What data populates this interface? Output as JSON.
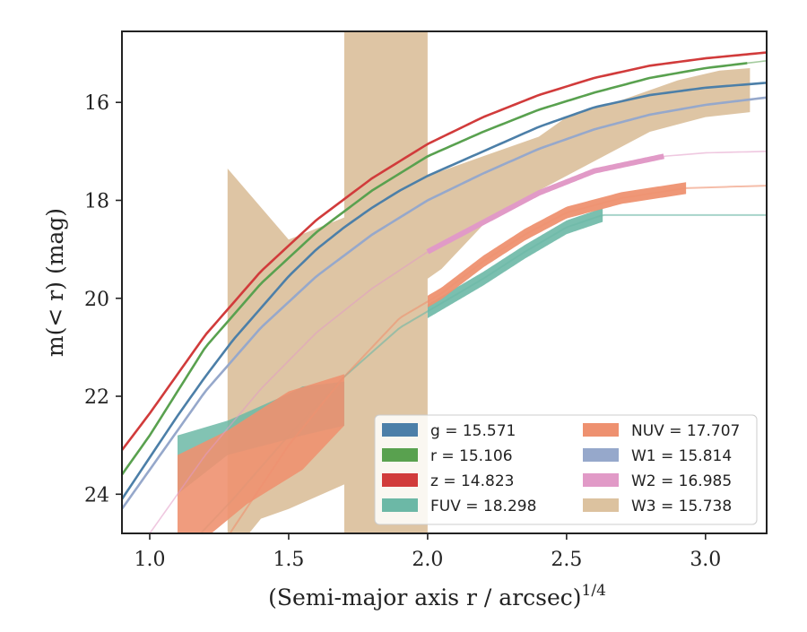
{
  "chart_data": {
    "type": "line",
    "xlabel": "(Semi-major axis r / arcsec)",
    "xlabel_exponent": "1/4",
    "ylabel": "m(< r) (mag)",
    "xlim": [
      0.9,
      3.22
    ],
    "ylim": [
      24.8,
      14.55
    ],
    "y_inverted": true,
    "xticks": [
      1.0,
      1.5,
      2.0,
      2.5,
      3.0
    ],
    "xtick_labels": [
      "1.0",
      "1.5",
      "2.0",
      "2.5",
      "3.0"
    ],
    "yticks": [
      16,
      18,
      20,
      22,
      24
    ],
    "ytick_labels": [
      "16",
      "18",
      "20",
      "22",
      "24"
    ],
    "grid": false,
    "legend_position": "lower-right",
    "series": [
      {
        "key": "g",
        "name": "g = 15.571",
        "color": "#4c7fa8",
        "x": [
          0.9,
          1.0,
          1.1,
          1.2,
          1.3,
          1.4,
          1.5,
          1.6,
          1.7,
          1.8,
          1.9,
          2.0,
          2.2,
          2.4,
          2.6,
          2.8,
          3.0,
          3.22
        ],
        "y": [
          24.1,
          23.25,
          22.4,
          21.6,
          20.85,
          20.2,
          19.55,
          19.0,
          18.55,
          18.15,
          17.8,
          17.5,
          17.0,
          16.5,
          16.1,
          15.85,
          15.7,
          15.6
        ],
        "band_end": 3.22
      },
      {
        "key": "r",
        "name": "r = 15.106",
        "color": "#59a14f",
        "x": [
          0.9,
          1.0,
          1.2,
          1.4,
          1.6,
          1.8,
          2.0,
          2.2,
          2.4,
          2.6,
          2.8,
          3.0,
          3.22
        ],
        "y": [
          23.6,
          22.8,
          21.0,
          19.7,
          18.65,
          17.8,
          17.1,
          16.6,
          16.15,
          15.8,
          15.5,
          15.3,
          15.15
        ],
        "band_end": 3.15
      },
      {
        "key": "z",
        "name": "z = 14.823",
        "color": "#d13b3b",
        "x": [
          0.9,
          1.0,
          1.2,
          1.4,
          1.6,
          1.8,
          2.0,
          2.2,
          2.4,
          2.6,
          2.8,
          3.0,
          3.22
        ],
        "y": [
          23.1,
          22.35,
          20.75,
          19.45,
          18.4,
          17.55,
          16.85,
          16.3,
          15.85,
          15.5,
          15.25,
          15.1,
          14.98
        ],
        "band_end": 3.22
      },
      {
        "key": "FUV",
        "name": "FUV = 18.298",
        "color": "#6cb8a6",
        "x": [
          1.1,
          1.3,
          1.5,
          1.7,
          1.9,
          2.05,
          2.2,
          2.35,
          2.5,
          2.63,
          2.8,
          3.0,
          3.22
        ],
        "y": [
          25.3,
          24.1,
          22.8,
          21.6,
          20.6,
          20.1,
          19.6,
          19.05,
          18.55,
          18.3,
          18.3,
          18.3,
          18.3
        ],
        "band_end": 2.63
      },
      {
        "key": "NUV",
        "name": "NUV = 17.707",
        "color": "#ee9170",
        "x": [
          1.1,
          1.3,
          1.5,
          1.7,
          1.9,
          2.05,
          2.2,
          2.35,
          2.5,
          2.7,
          2.93,
          3.1,
          3.22
        ],
        "y": [
          26.5,
          24.7,
          23.0,
          21.6,
          20.4,
          19.9,
          19.25,
          18.7,
          18.25,
          17.95,
          17.75,
          17.72,
          17.7
        ],
        "band_end": 2.93
      },
      {
        "key": "W1",
        "name": "W1 = 15.814",
        "color": "#96a8cb",
        "x": [
          0.9,
          1.0,
          1.2,
          1.4,
          1.6,
          1.8,
          2.0,
          2.2,
          2.4,
          2.6,
          2.8,
          3.0,
          3.22
        ],
        "y": [
          24.3,
          23.5,
          21.9,
          20.6,
          19.55,
          18.7,
          18.0,
          17.45,
          16.95,
          16.55,
          16.25,
          16.05,
          15.9
        ],
        "band_end": 3.22
      },
      {
        "key": "W2",
        "name": "W2 = 16.985",
        "color": "#e19ac7",
        "x": [
          0.9,
          1.0,
          1.2,
          1.4,
          1.6,
          1.8,
          2.0,
          2.2,
          2.4,
          2.6,
          2.85,
          3.0,
          3.22
        ],
        "y": [
          25.6,
          24.8,
          23.2,
          21.85,
          20.7,
          19.8,
          19.05,
          18.45,
          17.85,
          17.4,
          17.1,
          17.03,
          17.0
        ],
        "band_end": 2.85
      },
      {
        "key": "W3",
        "name": "W3 = 15.738",
        "color": "#dcc29f",
        "x": [
          1.28,
          1.5,
          1.7,
          1.9,
          2.0,
          2.2,
          2.4,
          2.6,
          2.8,
          3.0,
          3.16
        ],
        "y": [
          22.0,
          21.1,
          20.4,
          19.5,
          18.8,
          17.9,
          17.3,
          16.85,
          16.35,
          16.0,
          15.8
        ],
        "band_end": 3.16
      }
    ],
    "legend": [
      {
        "key": "g",
        "label": "g = 15.571"
      },
      {
        "key": "r",
        "label": "r = 15.106"
      },
      {
        "key": "z",
        "label": "z = 14.823"
      },
      {
        "key": "FUV",
        "label": "FUV = 18.298"
      },
      {
        "key": "NUV",
        "label": "NUV = 17.707"
      },
      {
        "key": "W1",
        "label": "W1 = 15.814"
      },
      {
        "key": "W2",
        "label": "W2 = 16.985"
      },
      {
        "key": "W3",
        "label": "W3 = 15.738"
      }
    ]
  }
}
